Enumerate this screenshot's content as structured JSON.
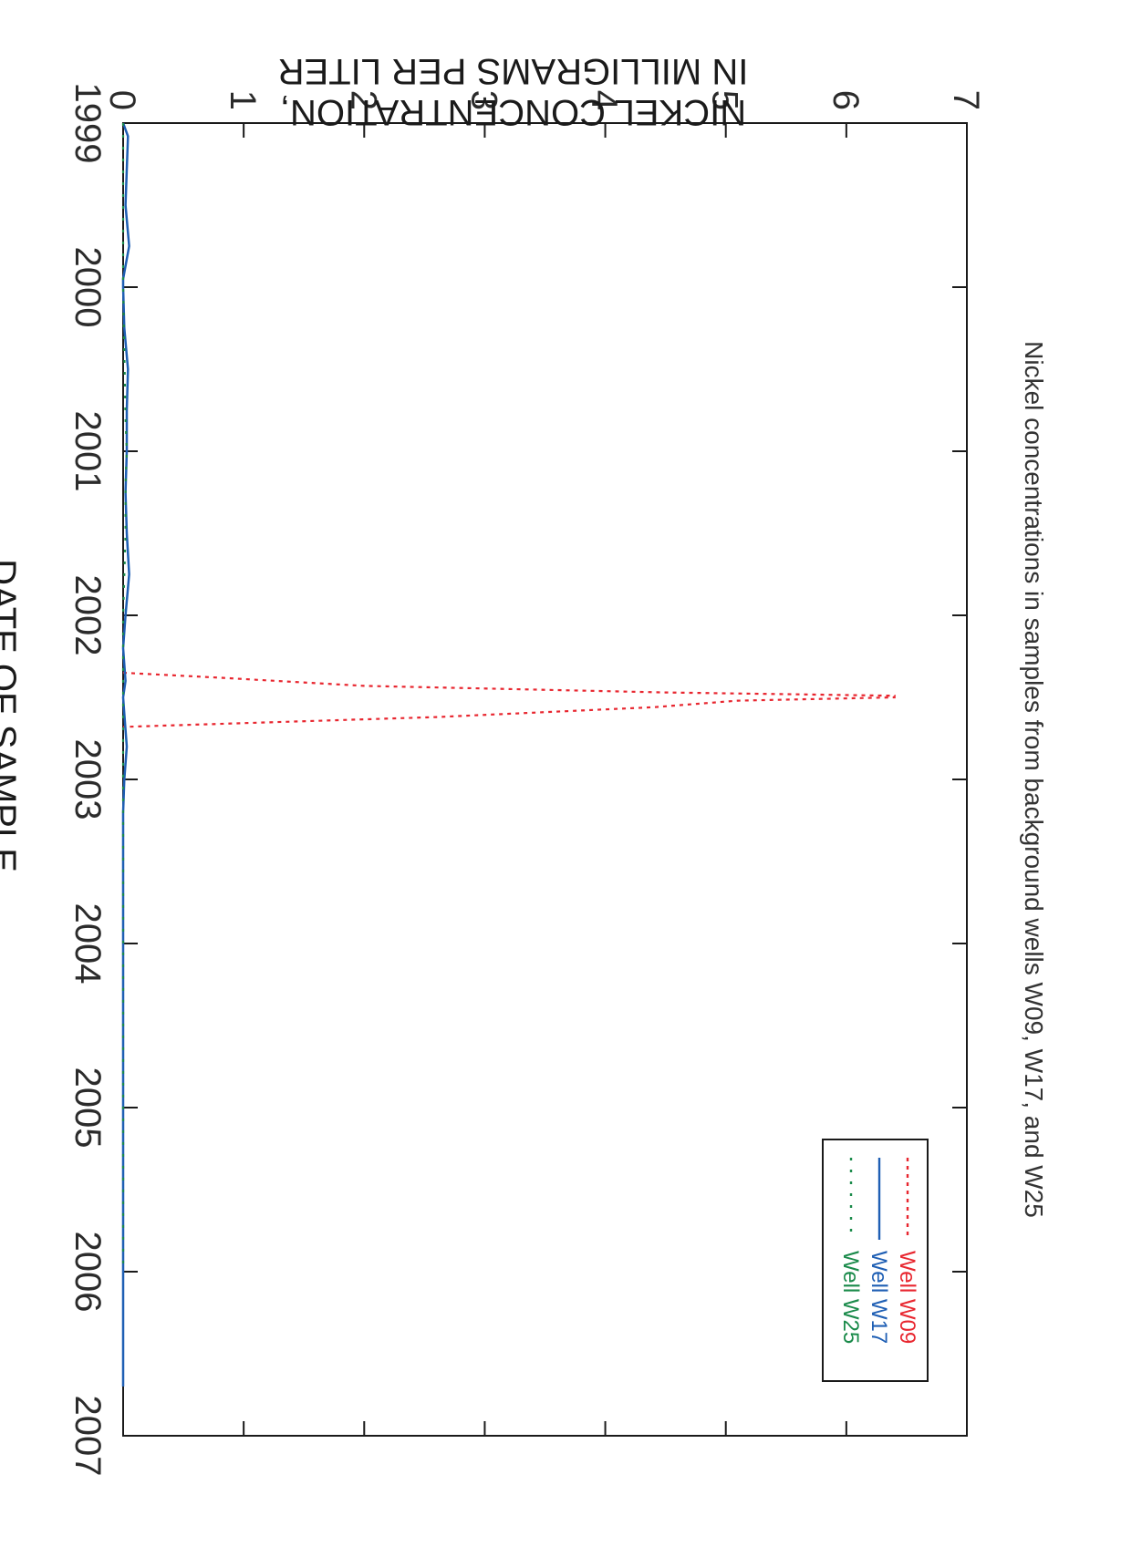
{
  "chart_data": {
    "type": "line",
    "title": "Nickel concentrations in samples from background wells W09, W17, and W25",
    "xlabel": "DATE OF SAMPLE",
    "ylabel": [
      "NICKEL CONCENTRATION,",
      "IN MILLIGRAMS PER LITER"
    ],
    "xlim": [
      1999,
      2007
    ],
    "ylim": [
      0,
      7
    ],
    "x_ticks": [
      1999,
      2000,
      2001,
      2002,
      2003,
      2004,
      2005,
      2006,
      2007
    ],
    "y_ticks": [
      0,
      1,
      2,
      3,
      4,
      5,
      6,
      7
    ],
    "grid": false,
    "legend_position": "top-right",
    "series": [
      {
        "name": "Well W09",
        "color": "#e8262f",
        "style": "dotted",
        "x": [
          2002.35,
          2002.38,
          2002.43,
          2002.47,
          2002.49,
          2002.5,
          2002.52,
          2002.56,
          2002.62,
          2002.68
        ],
        "y": [
          0.0,
          0.8,
          2.0,
          4.5,
          6.4,
          6.4,
          5.1,
          4.4,
          2.6,
          0.0
        ]
      },
      {
        "name": "Well W17",
        "color": "#1f5fb4",
        "style": "solid",
        "x": [
          1999.0,
          1999.08,
          1999.5,
          1999.75,
          1999.95,
          2000.0,
          2000.25,
          2000.5,
          2000.75,
          2001.0,
          2001.25,
          2001.5,
          2001.75,
          2002.0,
          2002.2,
          2002.4,
          2002.5,
          2002.6,
          2002.8,
          2003.0,
          2003.2,
          2004.0,
          2005.0,
          2006.0,
          2006.7
        ],
        "y": [
          0.0,
          0.04,
          0.02,
          0.05,
          0.0,
          0.0,
          0.01,
          0.04,
          0.03,
          0.03,
          0.02,
          0.03,
          0.05,
          0.02,
          0.0,
          0.02,
          0.0,
          0.01,
          0.03,
          0.01,
          0.0,
          0.0,
          0.0,
          0.0,
          0.0
        ]
      },
      {
        "name": "Well W25",
        "color": "#1a8a4a",
        "style": "dash-dot",
        "x": [
          1999.0,
          2000.0,
          2000.8,
          2001.0,
          2001.2,
          2001.5,
          2002.0,
          2003.0,
          2004.0,
          2005.0,
          2006.0
        ],
        "y": [
          0.0,
          0.0,
          0.02,
          0.03,
          0.02,
          0.02,
          0.0,
          0.0,
          0.0,
          0.0,
          0.0
        ]
      }
    ]
  }
}
